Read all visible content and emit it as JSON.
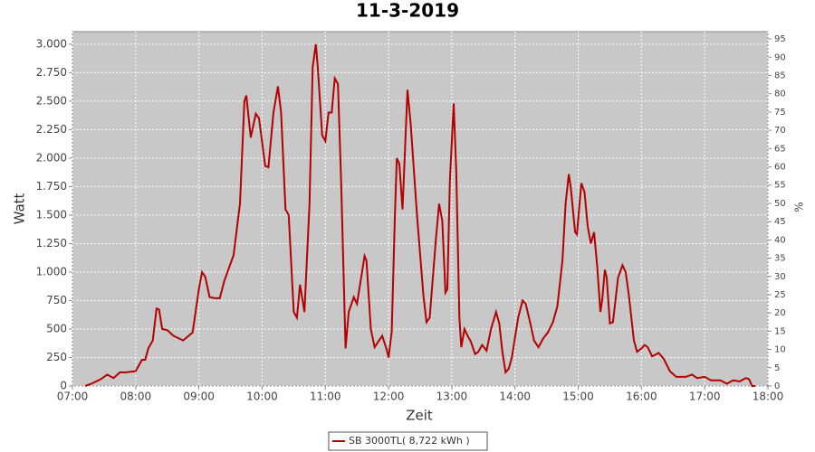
{
  "chart_data": {
    "type": "line",
    "title": "11-3-2019",
    "x_label": "Zeit",
    "y_label": "Watt",
    "y2_label": "%",
    "x": [
      7.2,
      7.3,
      7.45,
      7.55,
      7.65,
      7.75,
      7.85,
      8.0,
      8.1,
      8.15,
      8.2,
      8.27,
      8.33,
      8.37,
      8.42,
      8.5,
      8.6,
      8.75,
      8.9,
      9.0,
      9.05,
      9.1,
      9.17,
      9.25,
      9.33,
      9.4,
      9.55,
      9.65,
      9.72,
      9.75,
      9.82,
      9.9,
      9.95,
      10.05,
      10.1,
      10.18,
      10.25,
      10.3,
      10.37,
      10.42,
      10.5,
      10.55,
      10.6,
      10.67,
      10.75,
      10.8,
      10.85,
      10.88,
      10.95,
      11.0,
      11.05,
      11.1,
      11.15,
      11.2,
      11.25,
      11.32,
      11.37,
      11.45,
      11.5,
      11.58,
      11.62,
      11.65,
      11.72,
      11.78,
      11.85,
      11.9,
      11.97,
      12.0,
      12.05,
      12.1,
      12.13,
      12.17,
      12.22,
      12.27,
      12.3,
      12.35,
      12.45,
      12.55,
      12.6,
      12.65,
      12.75,
      12.8,
      12.85,
      12.9,
      12.93,
      12.97,
      13.03,
      13.07,
      13.12,
      13.15,
      13.2,
      13.25,
      13.3,
      13.37,
      13.42,
      13.48,
      13.55,
      13.62,
      13.7,
      13.75,
      13.8,
      13.85,
      13.9,
      13.95,
      14.05,
      14.12,
      14.17,
      14.25,
      14.3,
      14.37,
      14.45,
      14.52,
      14.6,
      14.67,
      14.75,
      14.8,
      14.85,
      14.88,
      14.95,
      14.98,
      15.05,
      15.1,
      15.15,
      15.2,
      15.25,
      15.3,
      15.35,
      15.38,
      15.42,
      15.45,
      15.5,
      15.55,
      15.63,
      15.7,
      15.75,
      15.8,
      15.88,
      15.93,
      16.0,
      16.05,
      16.1,
      16.17,
      16.27,
      16.35,
      16.45,
      16.55,
      16.7,
      16.8,
      16.88,
      17.0,
      17.1,
      17.25,
      17.35,
      17.45,
      17.55,
      17.65,
      17.7,
      17.75,
      17.8
    ],
    "series": [
      {
        "name": "SB 3000TL( 8,722 kWh )",
        "color": "#b30000",
        "values": [
          0,
          20,
          60,
          100,
          70,
          120,
          120,
          130,
          230,
          230,
          330,
          400,
          680,
          670,
          500,
          490,
          440,
          400,
          470,
          850,
          1000,
          960,
          780,
          770,
          770,
          920,
          1150,
          1600,
          2500,
          2550,
          2180,
          2390,
          2350,
          1930,
          1920,
          2400,
          2630,
          2400,
          1550,
          1500,
          650,
          600,
          890,
          650,
          1600,
          2800,
          3000,
          2800,
          2200,
          2150,
          2400,
          2400,
          2700,
          2650,
          1800,
          330,
          650,
          780,
          720,
          1000,
          1140,
          1100,
          500,
          340,
          400,
          440,
          320,
          250,
          480,
          1500,
          2000,
          1950,
          1550,
          2200,
          2600,
          2300,
          1500,
          800,
          560,
          600,
          1300,
          1600,
          1450,
          820,
          850,
          1800,
          2480,
          1900,
          600,
          340,
          500,
          440,
          390,
          280,
          300,
          360,
          310,
          500,
          650,
          550,
          300,
          120,
          150,
          250,
          600,
          750,
          720,
          530,
          400,
          340,
          420,
          470,
          560,
          700,
          1100,
          1600,
          1860,
          1750,
          1350,
          1330,
          1780,
          1700,
          1400,
          1250,
          1350,
          1050,
          650,
          760,
          1020,
          950,
          550,
          560,
          950,
          1060,
          1000,
          800,
          400,
          300,
          330,
          360,
          340,
          260,
          290,
          240,
          130,
          80,
          80,
          100,
          70,
          80,
          50,
          50,
          20,
          50,
          40,
          70,
          60,
          0,
          0
        ]
      }
    ],
    "xlim": [
      7,
      18
    ],
    "ylim": [
      0,
      3110
    ],
    "y2lim": [
      0,
      97
    ],
    "xticks": [
      {
        "value": 7,
        "label": "07:00"
      },
      {
        "value": 8,
        "label": "08:00"
      },
      {
        "value": 9,
        "label": "09:00"
      },
      {
        "value": 10,
        "label": "10:00"
      },
      {
        "value": 11,
        "label": "11:00"
      },
      {
        "value": 12,
        "label": "12:00"
      },
      {
        "value": 13,
        "label": "13:00"
      },
      {
        "value": 14,
        "label": "14:00"
      },
      {
        "value": 15,
        "label": "15:00"
      },
      {
        "value": 16,
        "label": "16:00"
      },
      {
        "value": 17,
        "label": "17:00"
      },
      {
        "value": 18,
        "label": "18:00"
      }
    ],
    "yticks": [
      0,
      250,
      500,
      750,
      {
        "value": 1000,
        "label": "1.000"
      },
      {
        "value": 1250,
        "label": "1.250"
      },
      {
        "value": 1500,
        "label": "1.500"
      },
      {
        "value": 1750,
        "label": "1.750"
      },
      {
        "value": 2000,
        "label": "2.000"
      },
      {
        "value": 2250,
        "label": "2.250"
      },
      {
        "value": 2500,
        "label": "2.500"
      },
      {
        "value": 2750,
        "label": "2.750"
      },
      {
        "value": 3000,
        "label": "3.000"
      }
    ],
    "y2ticks": [
      0,
      5,
      10,
      15,
      20,
      25,
      30,
      35,
      40,
      45,
      50,
      55,
      60,
      65,
      70,
      75,
      80,
      85,
      90,
      95
    ],
    "grid": true,
    "legend": "bottom"
  }
}
